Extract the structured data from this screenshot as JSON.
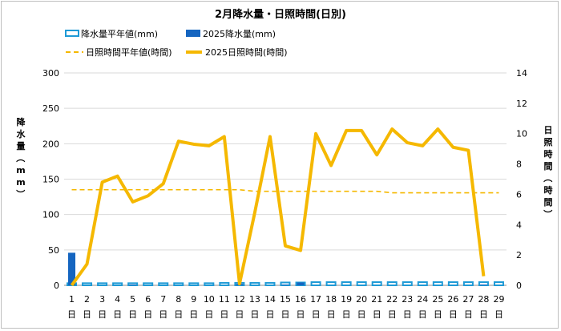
{
  "chart_data": {
    "type": "bar",
    "title": "2月降水量・日照時間(日別)",
    "categories": [
      "1",
      "2",
      "3",
      "4",
      "5",
      "6",
      "7",
      "8",
      "9",
      "10",
      "11",
      "12",
      "13",
      "14",
      "15",
      "16",
      "17",
      "18",
      "19",
      "20",
      "21",
      "22",
      "23",
      "24",
      "25",
      "26",
      "27",
      "28",
      "29"
    ],
    "day_suffix": "日",
    "ylabel_left": "降水量（mm）",
    "ylabel_right": "日照時間（時間）",
    "ylim_left": [
      0,
      300
    ],
    "yticks_left": [
      0,
      50,
      100,
      150,
      200,
      250,
      300
    ],
    "ylim_right": [
      0,
      14
    ],
    "yticks_right": [
      0,
      2,
      4,
      6,
      8,
      10,
      12,
      14
    ],
    "legend_placement": "top",
    "series": [
      {
        "name": "降水量平年値(mm)",
        "kind": "bar-outline",
        "axis": "left",
        "color": "#1f9ad6",
        "values": [
          3,
          3,
          3,
          3,
          3,
          3,
          3,
          3,
          3,
          3,
          3.5,
          3.5,
          3.5,
          3.5,
          4,
          4,
          4.5,
          4.5,
          4.5,
          4.5,
          4.5,
          4.5,
          4.5,
          4.5,
          4.5,
          4.5,
          4.5,
          4.5,
          4.5
        ]
      },
      {
        "name": "2025降水量(mm)",
        "kind": "bar",
        "axis": "left",
        "color": "#1565c0",
        "values": [
          46,
          0,
          0,
          0,
          0.5,
          0,
          0,
          0,
          0,
          0,
          0,
          2,
          0,
          0,
          1,
          4,
          0,
          0,
          0,
          0,
          0,
          0,
          0,
          0,
          0,
          0,
          0,
          1,
          null
        ]
      },
      {
        "name": "日照時間平年値(時間)",
        "kind": "dashed-line",
        "axis": "right",
        "color": "#f5b800",
        "values": [
          6.3,
          6.3,
          6.3,
          6.3,
          6.3,
          6.3,
          6.3,
          6.3,
          6.3,
          6.3,
          6.3,
          6.3,
          6.2,
          6.2,
          6.2,
          6.2,
          6.2,
          6.2,
          6.2,
          6.2,
          6.2,
          6.1,
          6.1,
          6.1,
          6.1,
          6.1,
          6.1,
          6.1,
          6.1
        ]
      },
      {
        "name": "2025日照時間(時間)",
        "kind": "line",
        "axis": "right",
        "color": "#f5b800",
        "values": [
          0,
          1.4,
          6.8,
          7.2,
          5.5,
          5.9,
          6.7,
          9.5,
          9.3,
          9.2,
          9.8,
          0.1,
          4.8,
          9.8,
          2.6,
          2.3,
          10.0,
          7.9,
          10.2,
          10.2,
          8.6,
          10.3,
          9.4,
          9.2,
          10.3,
          9.1,
          8.9,
          0.6,
          null
        ]
      }
    ]
  }
}
